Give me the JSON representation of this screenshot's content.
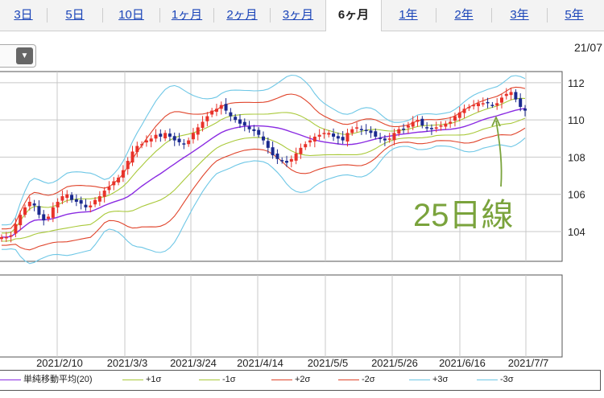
{
  "tabs": [
    {
      "label": "3日",
      "active": false
    },
    {
      "label": "5日",
      "active": false
    },
    {
      "label": "10日",
      "active": false
    },
    {
      "label": "1ヶ月",
      "active": false
    },
    {
      "label": "2ヶ月",
      "active": false
    },
    {
      "label": "3ヶ月",
      "active": false
    },
    {
      "label": "6ヶ月",
      "active": true
    },
    {
      "label": "1年",
      "active": false
    },
    {
      "label": "2年",
      "active": false
    },
    {
      "label": "3年",
      "active": false
    },
    {
      "label": "5年",
      "active": false
    }
  ],
  "dropdown": {
    "icon": "triangle-down-icon",
    "glyph": "▼"
  },
  "date_label": "21/07",
  "annotation": "25日線",
  "colors": {
    "up": "#e8322a",
    "down": "#1b2a8f",
    "sma": "#8a2be2",
    "s1": "#a9c93a",
    "s2": "#e0452c",
    "s3": "#6ec7e6"
  },
  "chart_data": {
    "type": "candlestick",
    "title": "",
    "ylim": [
      102.4,
      112.6
    ],
    "y_ticks": [
      "112",
      "110",
      "108",
      "106",
      "104"
    ],
    "x_ticks": [
      "2021/2/10",
      "2021/3/3",
      "2021/3/24",
      "2021/4/14",
      "2021/5/5",
      "2021/5/26",
      "2021/6/16",
      "2021/7/7"
    ],
    "grid": true,
    "legend_position": "bottom",
    "legend": [
      "単純移動平均(20)",
      "+1σ",
      "-1σ",
      "+2σ",
      "-2σ",
      "+3σ",
      "-3σ"
    ],
    "close_series": [
      103.7,
      103.7,
      103.8,
      104.4,
      104.9,
      105.3,
      105.6,
      105.4,
      104.9,
      104.6,
      104.8,
      105.3,
      105.6,
      105.9,
      106.0,
      105.7,
      105.6,
      105.5,
      105.3,
      105.4,
      105.7,
      105.9,
      106.2,
      106.4,
      106.7,
      106.9,
      107.3,
      107.8,
      108.3,
      108.6,
      108.7,
      108.9,
      109.0,
      109.2,
      109.1,
      109.3,
      109.1,
      108.9,
      108.8,
      108.7,
      108.9,
      109.3,
      109.6,
      109.9,
      110.2,
      110.5,
      110.6,
      110.8,
      110.5,
      110.2,
      110.0,
      109.8,
      109.7,
      109.5,
      109.4,
      109.2,
      108.9,
      108.5,
      108.1,
      107.9,
      107.8,
      107.7,
      107.9,
      108.2,
      108.5,
      108.7,
      108.9,
      109.1,
      109.2,
      109.3,
      109.3,
      109.1,
      109.0,
      108.9,
      109.3,
      109.5,
      109.6,
      109.5,
      109.4,
      109.3,
      109.1,
      109.0,
      108.9,
      109.0,
      109.3,
      109.5,
      109.5,
      109.7,
      109.9,
      110.0,
      109.7,
      109.6,
      109.5,
      109.6,
      109.7,
      109.8,
      109.9,
      110.2,
      110.4,
      110.6,
      110.7,
      110.8,
      110.9,
      110.9,
      110.9,
      110.8,
      110.9,
      111.2,
      111.4,
      111.5,
      111.1,
      110.7,
      110.5
    ]
  }
}
